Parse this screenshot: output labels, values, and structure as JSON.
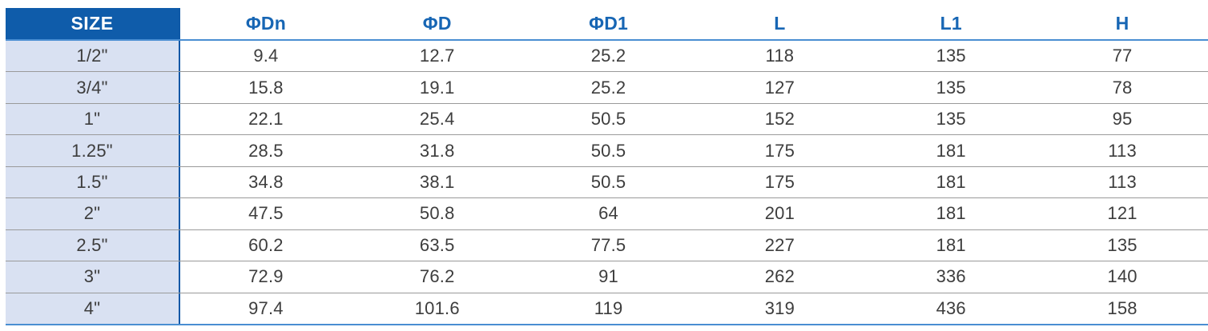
{
  "chart_data": {
    "type": "table",
    "title": "",
    "column_keys": [
      "size",
      "phi-dn",
      "phi-d",
      "phi-d1",
      "l",
      "l1",
      "h"
    ],
    "columns": [
      "SIZE",
      "ΦDn",
      "ΦD",
      "ΦD1",
      "L",
      "L1",
      "H"
    ],
    "rows": [
      [
        "1/2\"",
        "9.4",
        "12.7",
        "25.2",
        "118",
        "135",
        "77"
      ],
      [
        "3/4\"",
        "15.8",
        "19.1",
        "25.2",
        "127",
        "135",
        "78"
      ],
      [
        "1\"",
        "22.1",
        "25.4",
        "50.5",
        "152",
        "135",
        "95"
      ],
      [
        "1.25\"",
        "28.5",
        "31.8",
        "50.5",
        "175",
        "181",
        "113"
      ],
      [
        "1.5\"",
        "34.8",
        "38.1",
        "50.5",
        "175",
        "181",
        "113"
      ],
      [
        "2\"",
        "47.5",
        "50.8",
        "64",
        "201",
        "181",
        "121"
      ],
      [
        "2.5\"",
        "60.2",
        "63.5",
        "77.5",
        "227",
        "181",
        "135"
      ],
      [
        "3\"",
        "72.9",
        "76.2",
        "91",
        "262",
        "336",
        "140"
      ],
      [
        "4\"",
        "97.4",
        "101.6",
        "119",
        "319",
        "436",
        "158"
      ]
    ]
  },
  "colors": {
    "header_bg": "#0f5caa",
    "header_text": "#ffffff",
    "column_header_text": "#1766b4",
    "first_column_bg": "#d9e1f2",
    "first_column_border": "#0e58a6",
    "blue_divider": "#4a8ed2",
    "gray_divider": "#9a9a9a",
    "cell_text": "#3d3d3d"
  }
}
